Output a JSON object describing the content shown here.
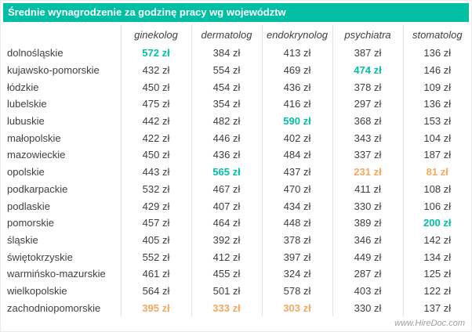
{
  "title_bar": {
    "title": "Średnie wynagrodzenie za godzinę pracy wg województw"
  },
  "footer": {
    "watermark": "www.HireDoc.com"
  },
  "colors": {
    "header_bg": "#00bfa2",
    "max_highlight": "#00bfa5",
    "min_highlight": "#f7a75e",
    "text": "#3c4043",
    "grid_line": "#e3e3e3"
  },
  "chart_data": {
    "type": "table",
    "title": "Średnie wynagrodzenie za godzinę pracy wg województw",
    "unit": "zł",
    "columns": [
      "ginekolog",
      "dermatolog",
      "endokrynolog",
      "psychiatra",
      "stomatolog"
    ],
    "rows": [
      {
        "region": "dolnośląskie",
        "values": [
          572,
          384,
          413,
          387,
          136
        ],
        "marks": [
          "max",
          "",
          "",
          "",
          ""
        ]
      },
      {
        "region": "kujawsko-pomorskie",
        "values": [
          432,
          554,
          469,
          474,
          146
        ],
        "marks": [
          "",
          "",
          "",
          "max",
          ""
        ]
      },
      {
        "region": "łódzkie",
        "values": [
          450,
          454,
          436,
          378,
          109
        ],
        "marks": [
          "",
          "",
          "",
          "",
          ""
        ]
      },
      {
        "region": "lubelskie",
        "values": [
          475,
          354,
          416,
          297,
          136
        ],
        "marks": [
          "",
          "",
          "",
          "",
          ""
        ]
      },
      {
        "region": "lubuskie",
        "values": [
          442,
          482,
          590,
          368,
          153
        ],
        "marks": [
          "",
          "",
          "max",
          "",
          ""
        ]
      },
      {
        "region": "małopolskie",
        "values": [
          422,
          446,
          402,
          343,
          104
        ],
        "marks": [
          "",
          "",
          "",
          "",
          ""
        ]
      },
      {
        "region": "mazowieckie",
        "values": [
          450,
          436,
          484,
          337,
          187
        ],
        "marks": [
          "",
          "",
          "",
          "",
          ""
        ]
      },
      {
        "region": "opolskie",
        "values": [
          443,
          565,
          437,
          231,
          81
        ],
        "marks": [
          "",
          "max",
          "",
          "min",
          "min"
        ]
      },
      {
        "region": "podkarpackie",
        "values": [
          532,
          467,
          470,
          411,
          108
        ],
        "marks": [
          "",
          "",
          "",
          "",
          ""
        ]
      },
      {
        "region": "podlaskie",
        "values": [
          429,
          407,
          434,
          330,
          106
        ],
        "marks": [
          "",
          "",
          "",
          "",
          ""
        ]
      },
      {
        "region": "pomorskie",
        "values": [
          457,
          464,
          448,
          389,
          200
        ],
        "marks": [
          "",
          "",
          "",
          "",
          "max"
        ]
      },
      {
        "region": "śląskie",
        "values": [
          405,
          392,
          378,
          346,
          142
        ],
        "marks": [
          "",
          "",
          "",
          "",
          ""
        ]
      },
      {
        "region": "świętokrzyskie",
        "values": [
          552,
          412,
          397,
          449,
          134
        ],
        "marks": [
          "",
          "",
          "",
          "",
          ""
        ]
      },
      {
        "region": "warmińsko-mazurskie",
        "values": [
          461,
          455,
          324,
          287,
          125
        ],
        "marks": [
          "",
          "",
          "",
          "",
          ""
        ]
      },
      {
        "region": "wielkopolskie",
        "values": [
          564,
          501,
          578,
          403,
          122
        ],
        "marks": [
          "",
          "",
          "",
          "",
          ""
        ]
      },
      {
        "region": "zachodniopomorskie",
        "values": [
          395,
          333,
          303,
          330,
          137
        ],
        "marks": [
          "min",
          "min",
          "min",
          "",
          ""
        ]
      }
    ]
  }
}
